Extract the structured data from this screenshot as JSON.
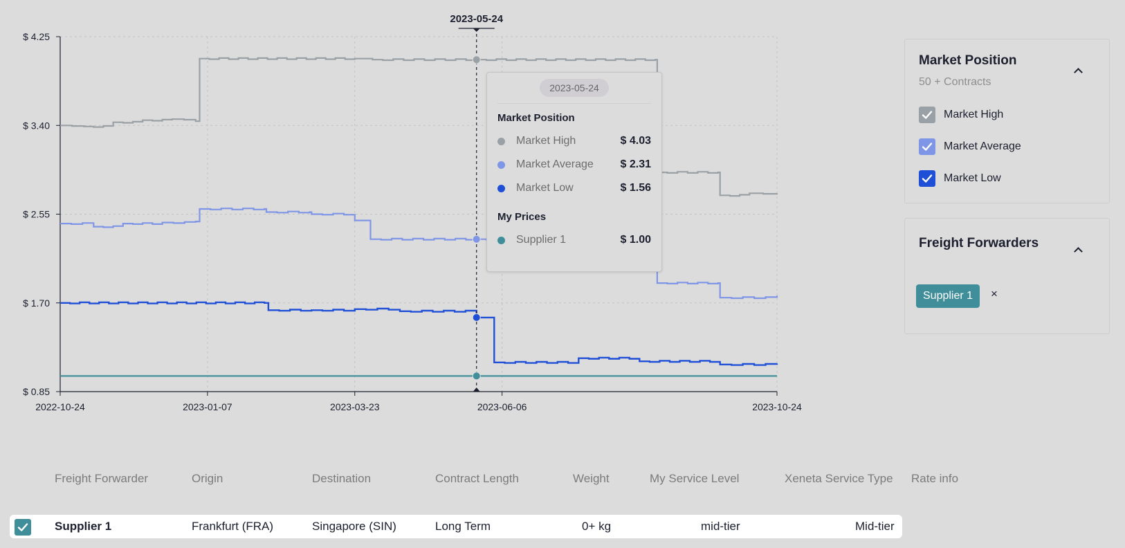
{
  "chart_data": {
    "type": "line",
    "step": true,
    "x_start": "2022-10-24",
    "x_end": "2023-10-24",
    "x_ticks": [
      "2022-10-24",
      "2023-01-07",
      "2023-03-23",
      "2023-06-06",
      "2023-10-24"
    ],
    "y_ticks": [
      "$ 0.85",
      "$ 1.70",
      "$ 2.55",
      "$ 3.40",
      "$ 4.25"
    ],
    "ylim": [
      0.85,
      4.25
    ],
    "grid": true,
    "cursor_date": "2023-05-24",
    "series": [
      {
        "name": "Market High",
        "color": "#9aa1a6",
        "points": [
          [
            "2022-10-24",
            3.4
          ],
          [
            "2022-11-05",
            3.39
          ],
          [
            "2022-11-20",
            3.43
          ],
          [
            "2022-12-05",
            3.45
          ],
          [
            "2022-12-20",
            3.46
          ],
          [
            "2023-01-01",
            3.44
          ],
          [
            "2023-01-03",
            4.04
          ],
          [
            "2023-03-23",
            4.04
          ],
          [
            "2023-04-01",
            4.03
          ],
          [
            "2023-05-24",
            4.03
          ],
          [
            "2023-08-23",
            4.03
          ],
          [
            "2023-08-24",
            2.95
          ],
          [
            "2023-09-24",
            2.95
          ],
          [
            "2023-09-25",
            2.73
          ],
          [
            "2023-10-10",
            2.75
          ],
          [
            "2023-10-24",
            2.75
          ]
        ]
      },
      {
        "name": "Market Average",
        "color": "#7f95e6",
        "points": [
          [
            "2022-10-24",
            2.46
          ],
          [
            "2022-11-10",
            2.43
          ],
          [
            "2022-11-25",
            2.46
          ],
          [
            "2022-12-15",
            2.47
          ],
          [
            "2023-01-01",
            2.48
          ],
          [
            "2023-01-03",
            2.6
          ],
          [
            "2023-02-05",
            2.6
          ],
          [
            "2023-02-06",
            2.57
          ],
          [
            "2023-02-28",
            2.57
          ],
          [
            "2023-03-01",
            2.55
          ],
          [
            "2023-03-23",
            2.49
          ],
          [
            "2023-03-31",
            2.31
          ],
          [
            "2023-05-24",
            2.31
          ],
          [
            "2023-08-23",
            2.24
          ],
          [
            "2023-08-24",
            1.89
          ],
          [
            "2023-09-24",
            1.89
          ],
          [
            "2023-09-25",
            1.75
          ],
          [
            "2023-10-24",
            1.77
          ]
        ]
      },
      {
        "name": "Market Low",
        "color": "#1f4fd6",
        "points": [
          [
            "2022-10-24",
            1.7
          ],
          [
            "2023-02-05",
            1.7
          ],
          [
            "2023-02-07",
            1.63
          ],
          [
            "2023-03-01",
            1.63
          ],
          [
            "2023-03-23",
            1.64
          ],
          [
            "2023-04-15",
            1.62
          ],
          [
            "2023-05-24",
            1.56
          ],
          [
            "2023-06-01",
            1.56
          ],
          [
            "2023-06-02",
            1.13
          ],
          [
            "2023-07-15",
            1.17
          ],
          [
            "2023-08-15",
            1.14
          ],
          [
            "2023-09-25",
            1.11
          ],
          [
            "2023-10-24",
            1.12
          ]
        ]
      },
      {
        "name": "Supplier 1",
        "color": "#3f8e9a",
        "points": [
          [
            "2022-10-24",
            1.0
          ],
          [
            "2023-10-24",
            1.0
          ]
        ]
      }
    ]
  },
  "tooltip": {
    "date": "2023-05-24",
    "section1": "Market Position",
    "rows": [
      {
        "name": "Market High",
        "value": "$ 4.03",
        "color": "#9aa1a6"
      },
      {
        "name": "Market Average",
        "value": "$ 2.31",
        "color": "#7f95e6"
      },
      {
        "name": "Market Low",
        "value": "$ 1.56",
        "color": "#1f4fd6"
      }
    ],
    "section2": "My Prices",
    "rows2": [
      {
        "name": "Supplier 1",
        "value": "$ 1.00",
        "color": "#3f8e9a"
      }
    ]
  },
  "market_panel": {
    "title": "Market Position",
    "subtitle": "50 + Contracts",
    "items": [
      {
        "label": "Market High",
        "checked": true,
        "color": "#9aa1a6"
      },
      {
        "label": "Market Average",
        "checked": true,
        "color": "#7f95e6"
      },
      {
        "label": "Market Low",
        "checked": true,
        "color": "#1f4fd6"
      }
    ]
  },
  "forwarders_panel": {
    "title": "Freight Forwarders",
    "chip": "Supplier 1",
    "remove": "×"
  },
  "table": {
    "headers": [
      "Freight Forwarder",
      "Origin",
      "Destination",
      "Contract Length",
      "Weight",
      "My Service Level",
      "Xeneta Service Type",
      "Rate info"
    ],
    "rows": [
      {
        "forwarder": "Supplier 1",
        "origin": "Frankfurt (FRA)",
        "destination": "Singapore (SIN)",
        "contract": "Long Term",
        "weight": "0+ kg",
        "service": "mid-tier",
        "xeneta": "Mid-tier",
        "rate": ""
      }
    ],
    "row_check_color": "#3f8e9a"
  }
}
